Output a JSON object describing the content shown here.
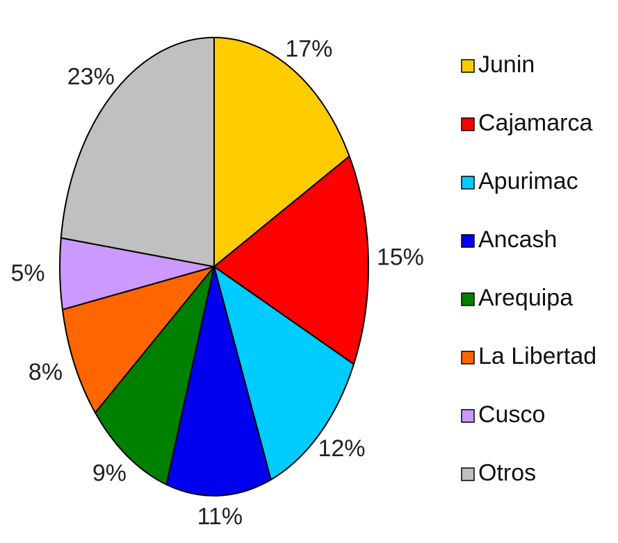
{
  "chart_data": {
    "type": "pie",
    "title": "",
    "legend_position": "right",
    "slices": [
      {
        "label": "Junin",
        "value": 17,
        "value_label": "17%",
        "color": "#FFCC00"
      },
      {
        "label": "Cajamarca",
        "value": 15,
        "value_label": "15%",
        "color": "#FF0000"
      },
      {
        "label": "Apurimac",
        "value": 12,
        "value_label": "12%",
        "color": "#00CCFF"
      },
      {
        "label": "Ancash",
        "value": 11,
        "value_label": "11%",
        "color": "#0000EE"
      },
      {
        "label": "Arequipa",
        "value": 9,
        "value_label": "9%",
        "color": "#008000"
      },
      {
        "label": "La Libertad",
        "value": 8,
        "value_label": "8%",
        "color": "#FF6600"
      },
      {
        "label": "Cusco",
        "value": 5,
        "value_label": "5%",
        "color": "#CC99FF"
      },
      {
        "label": "Otros",
        "value": 23,
        "value_label": "23%",
        "color": "#C0C0C0"
      }
    ]
  }
}
